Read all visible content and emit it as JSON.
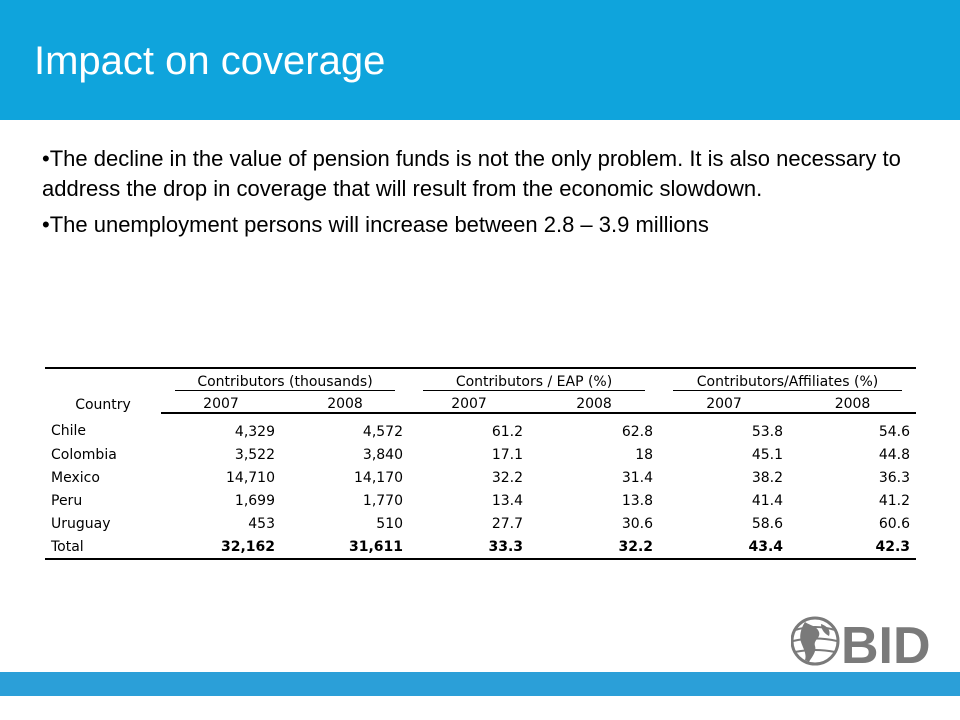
{
  "slide": {
    "title": "Impact on coverage",
    "bullets": [
      "•The decline in the value of pension funds is not the only problem. It is also necessary to address the drop in coverage that will result from the economic slowdown.",
      "•The unemployment persons will increase between 2.8 – 3.9 millions"
    ]
  },
  "table": {
    "country_header": "Country",
    "groups": [
      "Contributors (thousands)",
      "Contributors / EAP (%)",
      "Contributors/Affiliates (%)"
    ],
    "years": [
      "2007",
      "2008",
      "2007",
      "2008",
      "2007",
      "2008"
    ],
    "rows": [
      {
        "country": "Chile",
        "values": [
          "4,329",
          "4,572",
          "61.2",
          "62.8",
          "53.8",
          "54.6"
        ]
      },
      {
        "country": "Colombia",
        "values": [
          "3,522",
          "3,840",
          "17.1",
          "18",
          "45.1",
          "44.8"
        ]
      },
      {
        "country": "Mexico",
        "values": [
          "14,710",
          "14,170",
          "32.2",
          "31.4",
          "38.2",
          "36.3"
        ]
      },
      {
        "country": "Peru",
        "values": [
          "1,699",
          "1,770",
          "13.4",
          "13.8",
          "41.4",
          "41.2"
        ]
      },
      {
        "country": "Uruguay",
        "values": [
          "453",
          "510",
          "27.7",
          "30.6",
          "58.6",
          "60.6"
        ]
      },
      {
        "country": "Total",
        "values": [
          "32,162",
          "31,611",
          "33.3",
          "32.2",
          "43.4",
          "42.3"
        ]
      }
    ]
  },
  "logo": {
    "text": "BID"
  },
  "colors": {
    "header": "#0fa4dc",
    "bottom_bar": "#2b9fd8",
    "logo": "#7a7a7a"
  }
}
